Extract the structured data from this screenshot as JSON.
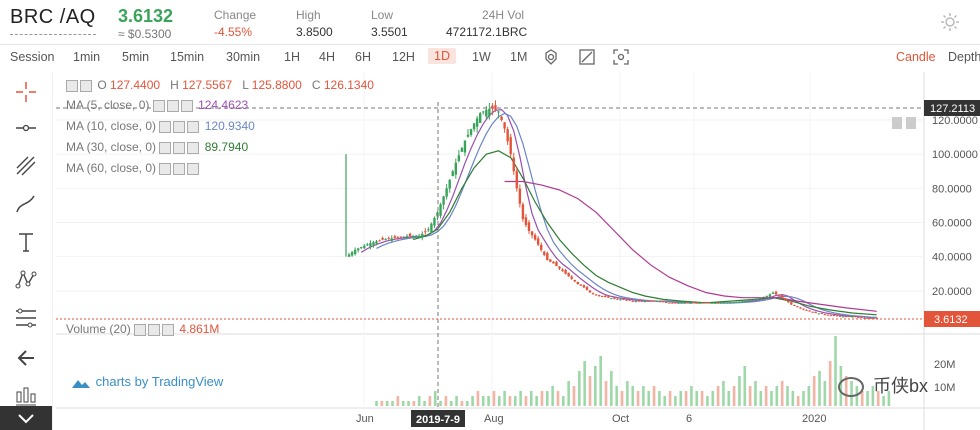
{
  "header": {
    "pair": "BRC /AQ",
    "price": "3.6132",
    "fiat": "≈ $0.5300",
    "change_label": "Change",
    "change_value": "-4.55%",
    "high_label": "High",
    "high_value": "3.8500",
    "low_label": "Low",
    "low_value": "3.5501",
    "vol_label": "24H Vol",
    "vol_value": "4721172.1BRC"
  },
  "toolbar": {
    "session": "Session",
    "intervals": [
      "1min",
      "5min",
      "15min",
      "30min",
      "1H",
      "4H",
      "6H",
      "12H",
      "1D",
      "1W",
      "1M"
    ],
    "active_interval": "1D",
    "candle": "Candle",
    "depth": "Depth"
  },
  "legend": {
    "o_label": "O",
    "o_value": "127.4400",
    "h_label": "H",
    "h_value": "127.5567",
    "l_label": "L",
    "l_value": "125.8800",
    "c_label": "C",
    "c_value": "126.1340",
    "ma5": "MA (5, close, 0)",
    "ma5_value": "124.4623",
    "ma10": "MA (10, close, 0)",
    "ma10_value": "120.9340",
    "ma30": "MA (30, close, 0)",
    "ma30_value": "89.7940",
    "ma60": "MA (60, close, 0)",
    "volume": "Volume (20)",
    "volume_value": "4.861M"
  },
  "branding": "charts by TradingView",
  "watermark": "币侠bx",
  "colors": {
    "up": "#3aa35a",
    "down": "#e3553a",
    "ma5": "#9b4fb0",
    "ma10": "#6a86c6",
    "ma30": "#2e7d32",
    "ma60": "#b03a8f"
  },
  "chart_data": {
    "type": "candlestick",
    "y_ticks": [
      "120.0000",
      "100.0000",
      "80.0000",
      "60.0000",
      "40.0000",
      "20.0000"
    ],
    "volume_ticks": [
      "20M",
      "10M"
    ],
    "x_ticks": [
      "Jun",
      "Aug",
      "Oct",
      "6",
      "2020"
    ],
    "crosshair_date": "2019-7-9",
    "crosshair_price": "127.2113",
    "last_price": "3.6132",
    "ylim": [
      0,
      130
    ],
    "price_path": [
      [
        0,
        40
      ],
      [
        3,
        44
      ],
      [
        8,
        48
      ],
      [
        12,
        50
      ],
      [
        16,
        51
      ],
      [
        20,
        52
      ],
      [
        24,
        52
      ],
      [
        27,
        56
      ],
      [
        30,
        66
      ],
      [
        33,
        80
      ],
      [
        36,
        95
      ],
      [
        39,
        108
      ],
      [
        42,
        118
      ],
      [
        44,
        124
      ],
      [
        46,
        126
      ],
      [
        48,
        127
      ],
      [
        50,
        125
      ],
      [
        52,
        115
      ],
      [
        54,
        100
      ],
      [
        56,
        80
      ],
      [
        58,
        62
      ],
      [
        60,
        55
      ],
      [
        62,
        50
      ],
      [
        64,
        44
      ],
      [
        66,
        38
      ],
      [
        68,
        36
      ],
      [
        70,
        33
      ],
      [
        72,
        30
      ],
      [
        74,
        27
      ],
      [
        76,
        24
      ],
      [
        78,
        22
      ],
      [
        80,
        19
      ],
      [
        83,
        17
      ],
      [
        86,
        16
      ],
      [
        90,
        15
      ],
      [
        94,
        14
      ],
      [
        98,
        14
      ],
      [
        102,
        14
      ],
      [
        106,
        13
      ],
      [
        110,
        13
      ],
      [
        114,
        13
      ],
      [
        118,
        13
      ],
      [
        122,
        13
      ],
      [
        126,
        13
      ],
      [
        130,
        14
      ],
      [
        134,
        15
      ],
      [
        138,
        17
      ],
      [
        140,
        19
      ],
      [
        142,
        17
      ],
      [
        146,
        12
      ],
      [
        150,
        9
      ],
      [
        154,
        7
      ],
      [
        158,
        6
      ],
      [
        162,
        5
      ],
      [
        166,
        5
      ],
      [
        170,
        4
      ],
      [
        174,
        4
      ]
    ],
    "ma30_path": [
      [
        22,
        50
      ],
      [
        26,
        52
      ],
      [
        30,
        56
      ],
      [
        34,
        66
      ],
      [
        38,
        80
      ],
      [
        42,
        92
      ],
      [
        46,
        100
      ],
      [
        50,
        102
      ],
      [
        54,
        98
      ],
      [
        58,
        86
      ],
      [
        62,
        72
      ],
      [
        66,
        60
      ],
      [
        70,
        50
      ],
      [
        74,
        42
      ],
      [
        78,
        35
      ],
      [
        82,
        29
      ],
      [
        86,
        25
      ],
      [
        90,
        22
      ],
      [
        94,
        19
      ],
      [
        98,
        17
      ],
      [
        104,
        15
      ],
      [
        110,
        14
      ],
      [
        118,
        13
      ],
      [
        126,
        14
      ],
      [
        134,
        15
      ],
      [
        140,
        16
      ],
      [
        146,
        14
      ],
      [
        152,
        11
      ],
      [
        158,
        9
      ],
      [
        166,
        7
      ],
      [
        174,
        6
      ]
    ],
    "ma60_path": [
      [
        52,
        84
      ],
      [
        58,
        84
      ],
      [
        64,
        82
      ],
      [
        70,
        79
      ],
      [
        76,
        74
      ],
      [
        82,
        66
      ],
      [
        88,
        55
      ],
      [
        94,
        44
      ],
      [
        100,
        35
      ],
      [
        106,
        28
      ],
      [
        112,
        23
      ],
      [
        118,
        19
      ],
      [
        124,
        17
      ],
      [
        130,
        16
      ],
      [
        136,
        16
      ],
      [
        142,
        16
      ],
      [
        148,
        14
      ],
      [
        156,
        12
      ],
      [
        164,
        10
      ],
      [
        174,
        8
      ]
    ],
    "volume": [
      1,
      1,
      1,
      1,
      2,
      1,
      1,
      1,
      2,
      1,
      2,
      3,
      1,
      2,
      1,
      2,
      1,
      1,
      2,
      3,
      2,
      2,
      3,
      2,
      3,
      2,
      2,
      3,
      2,
      3,
      2,
      3,
      3,
      4,
      3,
      2,
      5,
      4,
      7,
      9,
      6,
      8,
      10,
      5,
      7,
      4,
      3,
      5,
      4,
      3,
      4,
      3,
      4,
      3,
      2,
      3,
      2,
      3,
      3,
      4,
      3,
      3,
      2,
      3,
      4,
      5,
      3,
      4,
      6,
      8,
      4,
      5,
      3,
      4,
      3,
      4,
      5,
      4,
      3,
      2,
      3,
      4,
      6,
      7,
      5,
      9,
      14,
      8,
      6,
      5,
      4,
      3,
      3,
      4,
      3,
      2,
      3
    ]
  }
}
